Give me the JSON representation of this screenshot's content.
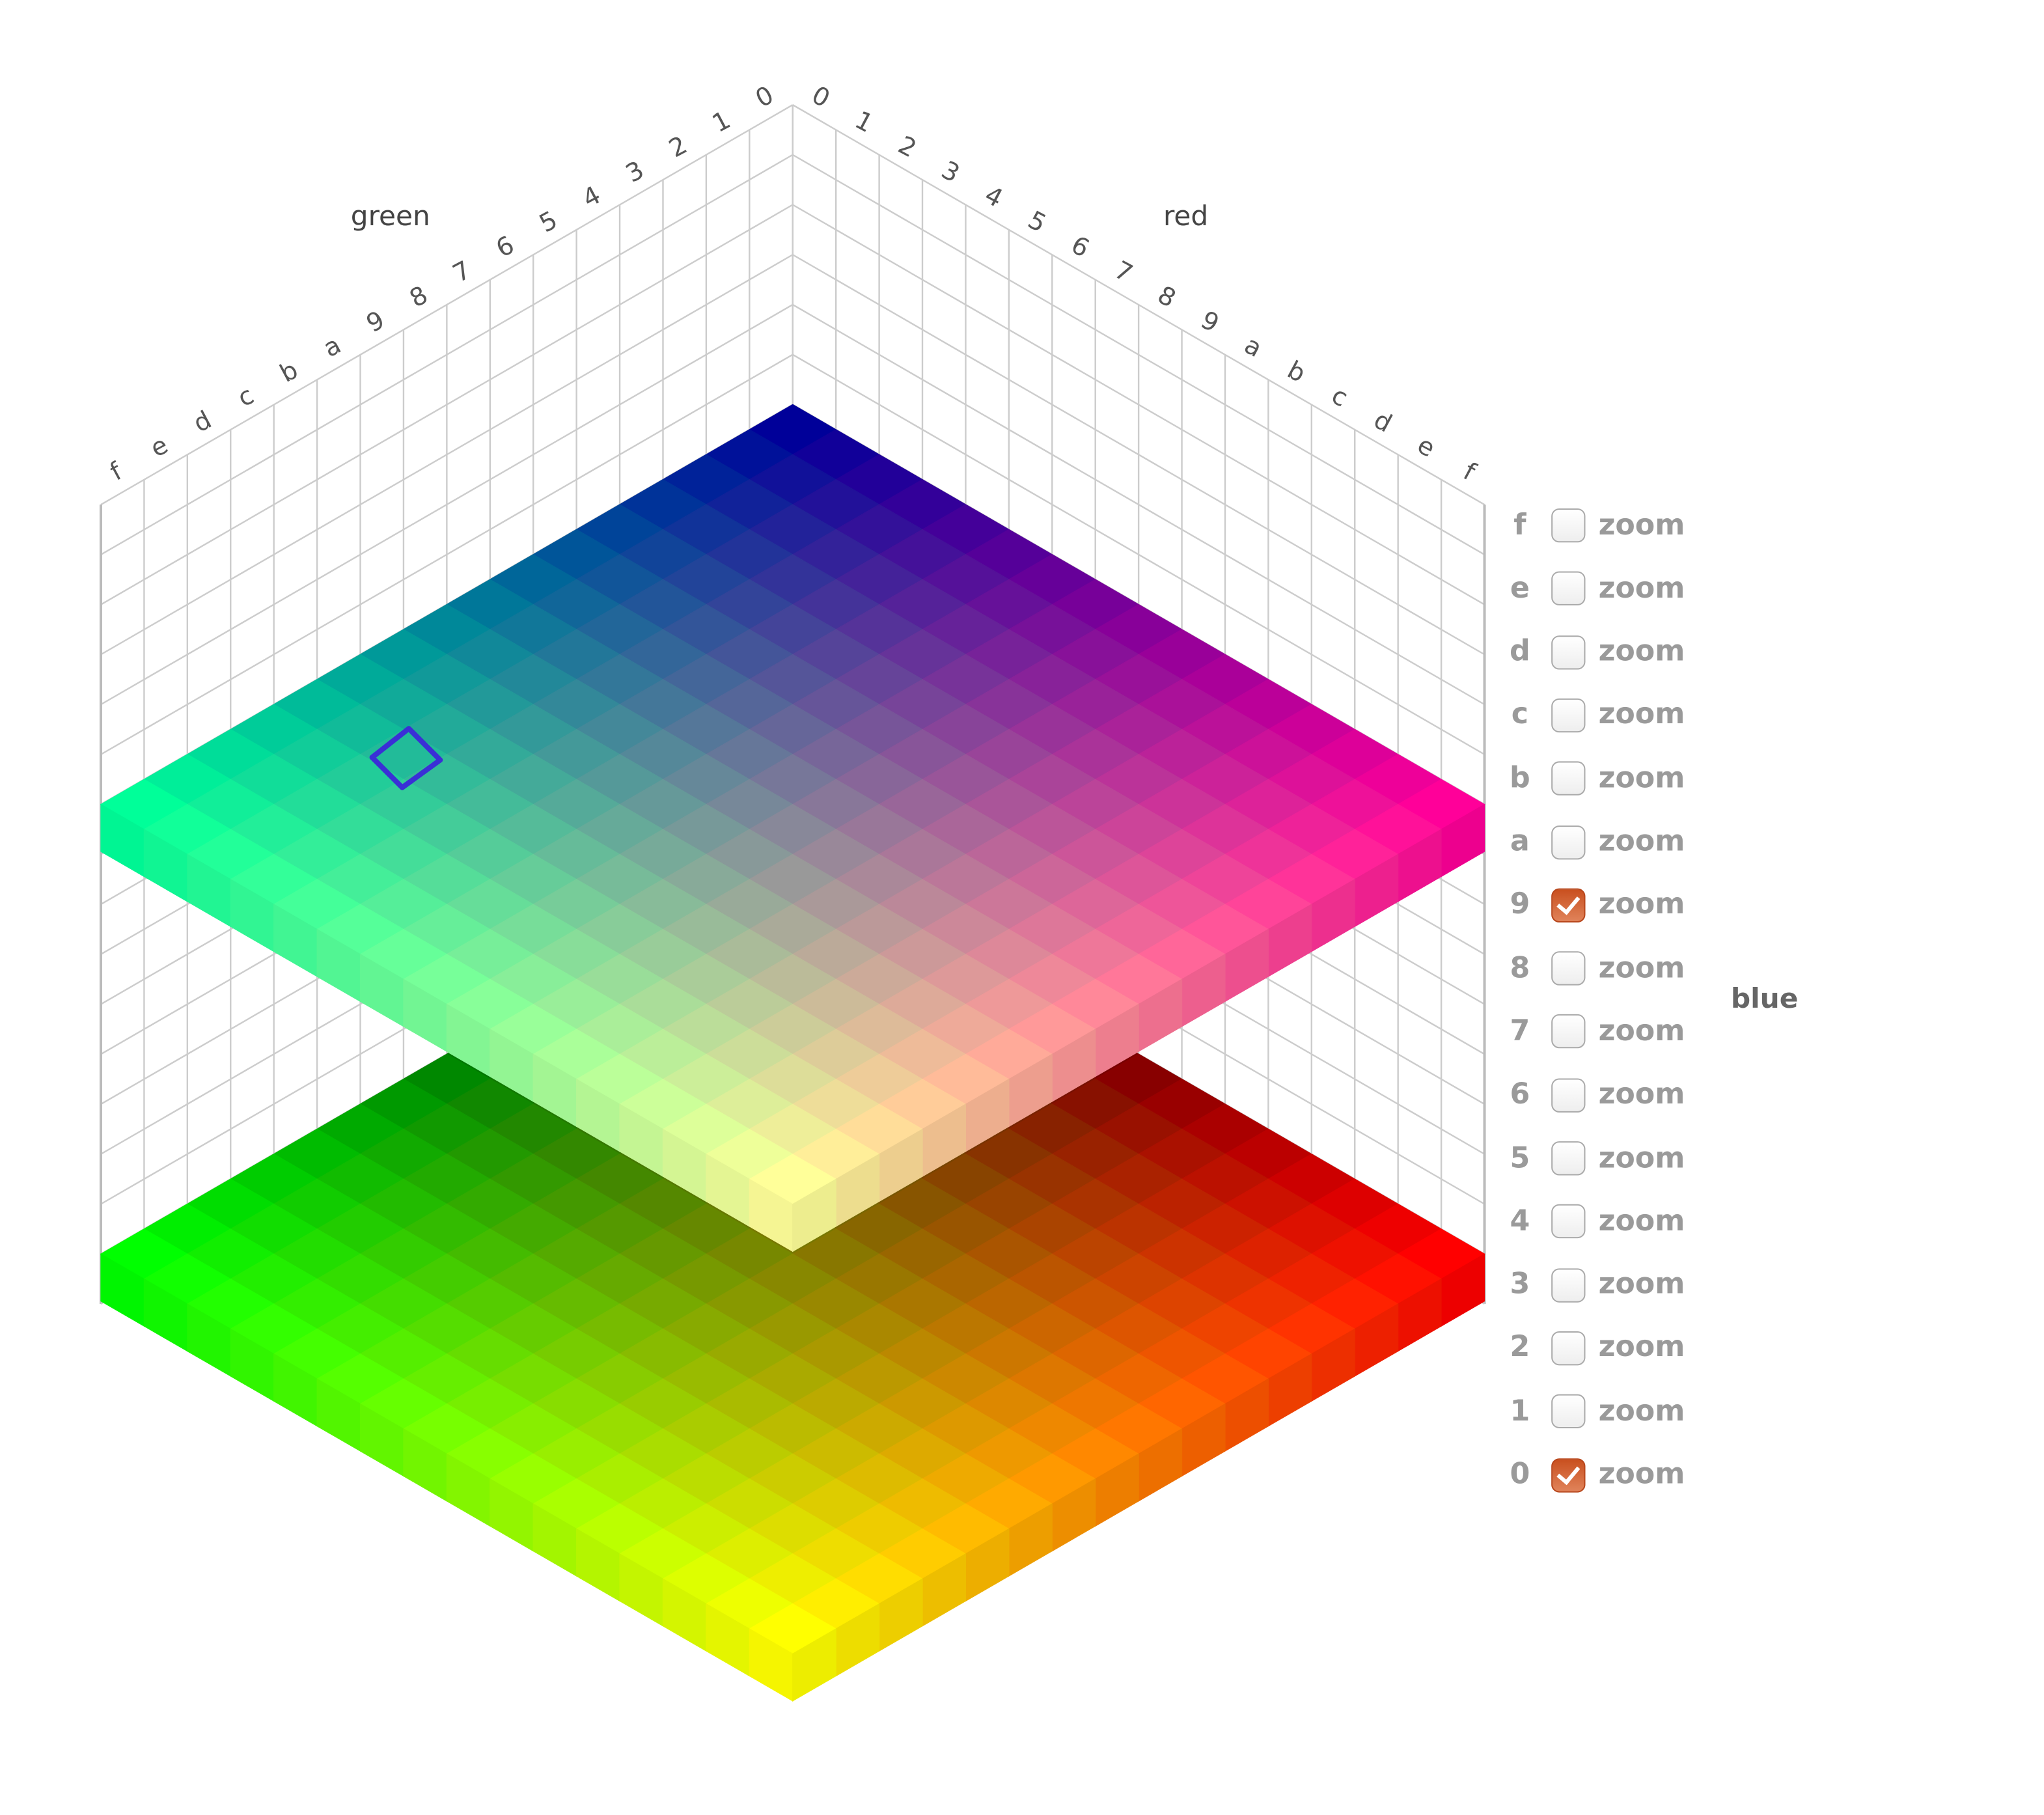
{
  "chart_data": {
    "type": "3d-color-cube",
    "axes": {
      "red": {
        "label": "red",
        "ticks": [
          "0",
          "1",
          "2",
          "3",
          "4",
          "5",
          "6",
          "7",
          "8",
          "9",
          "a",
          "b",
          "c",
          "d",
          "e",
          "f"
        ]
      },
      "green": {
        "label": "green",
        "ticks": [
          "0",
          "1",
          "2",
          "3",
          "4",
          "5",
          "6",
          "7",
          "8",
          "9",
          "a",
          "b",
          "c",
          "d",
          "e",
          "f"
        ]
      },
      "blue": {
        "label": "blue",
        "ticks": [
          "f",
          "e",
          "d",
          "c",
          "b",
          "a",
          "9",
          "8",
          "7",
          "6",
          "5",
          "4",
          "3",
          "2",
          "1",
          "0"
        ]
      }
    },
    "visible_blue_layers": [
      "0",
      "9"
    ],
    "grid": true
  },
  "legend": {
    "title": "blue",
    "rows": [
      {
        "level": "f",
        "label": "zoom",
        "checked": false
      },
      {
        "level": "e",
        "label": "zoom",
        "checked": false
      },
      {
        "level": "d",
        "label": "zoom",
        "checked": false
      },
      {
        "level": "c",
        "label": "zoom",
        "checked": false
      },
      {
        "level": "b",
        "label": "zoom",
        "checked": false
      },
      {
        "level": "a",
        "label": "zoom",
        "checked": false
      },
      {
        "level": "9",
        "label": "zoom",
        "checked": true
      },
      {
        "level": "8",
        "label": "zoom",
        "checked": false
      },
      {
        "level": "7",
        "label": "zoom",
        "checked": false
      },
      {
        "level": "6",
        "label": "zoom",
        "checked": false
      },
      {
        "level": "5",
        "label": "zoom",
        "checked": false
      },
      {
        "level": "4",
        "label": "zoom",
        "checked": false
      },
      {
        "level": "3",
        "label": "zoom",
        "checked": false
      },
      {
        "level": "2",
        "label": "zoom",
        "checked": false
      },
      {
        "level": "1",
        "label": "zoom",
        "checked": false
      },
      {
        "level": "0",
        "label": "zoom",
        "checked": true
      }
    ]
  },
  "colors": {
    "checked": "#c9501f",
    "annotation": "#3a2fd6",
    "grid": "#cccccc"
  },
  "annotation": {
    "shape": "hand-drawn-diamond-icon"
  }
}
